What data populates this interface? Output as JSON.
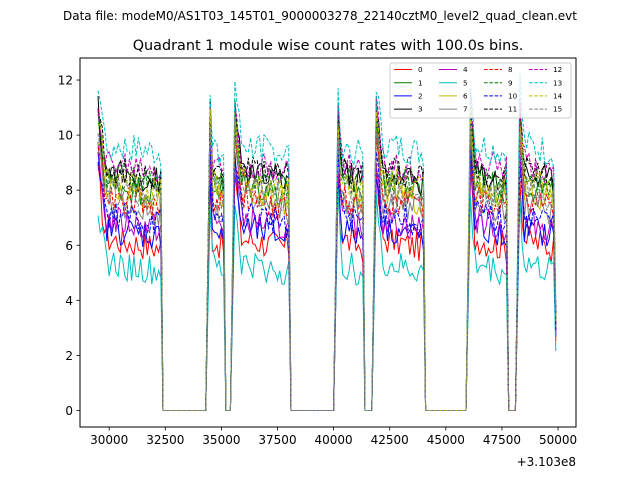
{
  "figure": {
    "suptitle": "Data file: modeM0/AS1T03_145T01_9000003278_22140cztM0_level2_quad_clean.evt",
    "background": "#ffffff"
  },
  "chart_data": {
    "type": "line",
    "title": "Quadrant 1 module wise count rates with 100.0s bins.",
    "xlabel": "",
    "ylabel": "",
    "x_offset_label": "+3.103e8",
    "xlim": [
      28700,
      50800
    ],
    "ylim": [
      -0.6,
      12.8
    ],
    "x_ticks": [
      30000,
      32500,
      35000,
      37500,
      40000,
      42500,
      45000,
      47500,
      50000
    ],
    "x_tick_labels": [
      "30000",
      "32500",
      "35000",
      "37500",
      "40000",
      "42500",
      "45000",
      "47500",
      "50000"
    ],
    "y_ticks": [
      0,
      2,
      4,
      6,
      8,
      10,
      12
    ],
    "y_tick_labels": [
      "0",
      "2",
      "4",
      "6",
      "8",
      "10",
      "12"
    ],
    "grid": false,
    "legend_position": "top-right",
    "legend_columns": 4,
    "segments": [
      {
        "start": 29500,
        "end": 32300
      },
      {
        "start": 34500,
        "end": 35100
      },
      {
        "start": 35600,
        "end": 38000
      },
      {
        "start": 40200,
        "end": 41300
      },
      {
        "start": 41900,
        "end": 44000
      },
      {
        "start": 46100,
        "end": 47700
      },
      {
        "start": 48300,
        "end": 49800
      }
    ],
    "gap_value": 0,
    "series": [
      {
        "name": "0",
        "color": "#ff0000",
        "dash": "solid",
        "level": 6.3
      },
      {
        "name": "1",
        "color": "#008000",
        "dash": "solid",
        "level": 8.3
      },
      {
        "name": "2",
        "color": "#0000ff",
        "dash": "solid",
        "level": 6.7
      },
      {
        "name": "3",
        "color": "#000000",
        "dash": "solid",
        "level": 8.7
      },
      {
        "name": "4",
        "color": "#bf00bf",
        "dash": "solid",
        "level": 7.0
      },
      {
        "name": "5",
        "color": "#00bfbf",
        "dash": "solid",
        "level": 5.4
      },
      {
        "name": "6",
        "color": "#bfbf00",
        "dash": "solid",
        "level": 8.0
      },
      {
        "name": "7",
        "color": "#808080",
        "dash": "solid",
        "level": 7.6
      },
      {
        "name": "8",
        "color": "#ff0000",
        "dash": "dashed",
        "level": 7.8
      },
      {
        "name": "9",
        "color": "#008000",
        "dash": "dashed",
        "level": 8.6
      },
      {
        "name": "10",
        "color": "#0000ff",
        "dash": "dashed",
        "level": 7.2
      },
      {
        "name": "11",
        "color": "#000000",
        "dash": "dashed",
        "level": 8.9
      },
      {
        "name": "12",
        "color": "#bf00bf",
        "dash": "dashed",
        "level": 9.1
      },
      {
        "name": "13",
        "color": "#00bfbf",
        "dash": "dashed",
        "level": 9.7
      },
      {
        "name": "14",
        "color": "#bfbf00",
        "dash": "dashed",
        "level": 8.4
      },
      {
        "name": "15",
        "color": "#808080",
        "dash": "dashed",
        "level": 8.1
      }
    ]
  }
}
